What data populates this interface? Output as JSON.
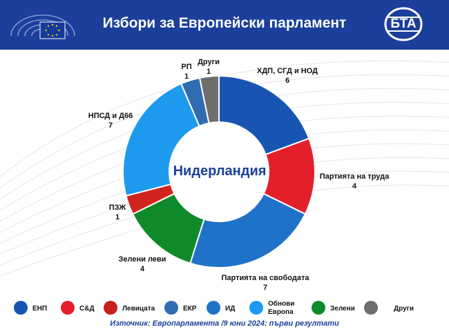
{
  "header": {
    "title": "Избори за Европейски парламент",
    "logo_text": "БТА"
  },
  "colors": {
    "header_bg": "#1b3f9a",
    "center_text": "#1b3f9a",
    "source_text": "#1b3f9a"
  },
  "chart_data": {
    "type": "pie",
    "subtype": "donut",
    "title": "",
    "center_label": "Нидерландия",
    "slices": [
      {
        "label": "ХДП, СГД и НОД",
        "value": 6,
        "color": "#1855b3"
      },
      {
        "label": "Партията на труда",
        "value": 4,
        "color": "#e3202a"
      },
      {
        "label": "Партията на свободата",
        "value": 7,
        "color": "#1e73c8"
      },
      {
        "label": "Зелени леви",
        "value": 4,
        "color": "#0f8a2a"
      },
      {
        "label": "ПЗЖ",
        "value": 1,
        "color": "#d0251f"
      },
      {
        "label": "НПСД и Д66",
        "value": 7,
        "color": "#1d9aee"
      },
      {
        "label": "РП",
        "value": 1,
        "color": "#2f6db0"
      },
      {
        "label": "Други",
        "value": 1,
        "color": "#6e6e6e"
      }
    ]
  },
  "legend": [
    {
      "label": "ЕНП",
      "color": "#1855b3"
    },
    {
      "label": "С&Д",
      "color": "#e3202a"
    },
    {
      "label": "Левицата",
      "color": "#c61f1f"
    },
    {
      "label": "ЕКР",
      "color": "#2f6db0"
    },
    {
      "label": "ИД",
      "color": "#1e73c8"
    },
    {
      "label": "Обнови\nЕвропа",
      "color": "#1d9aee"
    },
    {
      "label": "Зелени",
      "color": "#0f8a2a"
    },
    {
      "label": "Други",
      "color": "#6e6e6e"
    }
  ],
  "source": "Източник: Европарламента /9 юни 2024: първи резултати"
}
